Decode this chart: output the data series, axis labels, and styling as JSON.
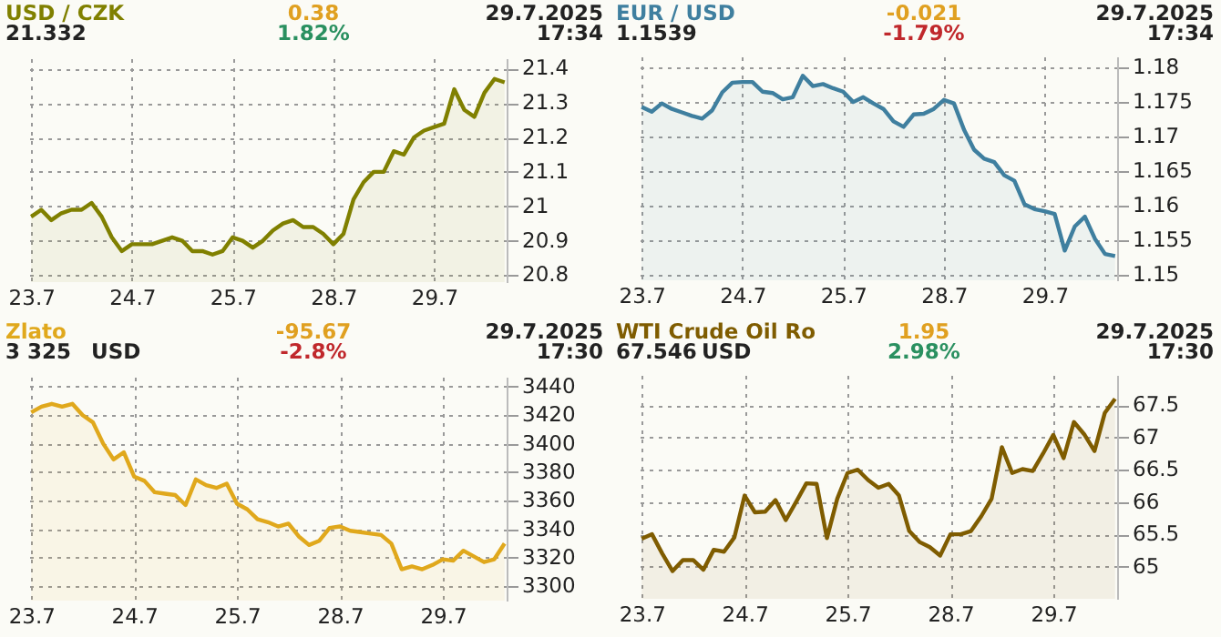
{
  "chart_data": [
    {
      "type": "area",
      "title": "USD / CZK",
      "annotations": [
        "21.332",
        "0.38",
        "1.82%",
        "29.7.2025",
        "17:34"
      ],
      "categories": [
        "23.7",
        null,
        null,
        null,
        null,
        null,
        null,
        null,
        null,
        null,
        "24.7",
        null,
        null,
        null,
        null,
        null,
        null,
        null,
        null,
        null,
        "25.7",
        null,
        null,
        null,
        null,
        null,
        null,
        null,
        null,
        null,
        "28.7",
        null,
        null,
        null,
        null,
        null,
        null,
        null,
        null,
        null,
        "29.7",
        null,
        null,
        null,
        null,
        null,
        null,
        null
      ],
      "series": [
        {
          "color": "#808000",
          "values": [
            20.97,
            20.99,
            20.96,
            20.98,
            20.99,
            20.99,
            21.01,
            20.97,
            20.91,
            20.87,
            20.89,
            20.89,
            20.89,
            20.9,
            20.91,
            20.9,
            20.87,
            20.87,
            20.86,
            20.87,
            20.91,
            20.9,
            20.88,
            20.9,
            20.93,
            20.95,
            20.96,
            20.94,
            20.94,
            20.92,
            20.89,
            20.92,
            21.02,
            21.07,
            21.1,
            21.1,
            21.16,
            21.15,
            21.2,
            21.22,
            21.23,
            21.24,
            21.34,
            21.28,
            21.26,
            21.33,
            21.37,
            21.36
          ]
        }
      ],
      "ylim": [
        20.78,
        21.43
      ],
      "yticks": [
        20.8,
        20.9,
        21,
        21.1,
        21.2,
        21.3,
        21.4
      ],
      "grid": true
    },
    {
      "type": "area",
      "title": "EUR / USD",
      "annotations": [
        "1.1539",
        "-0.021",
        "-1.79%",
        "29.7.2025",
        "17:34"
      ],
      "categories": [
        "23.7",
        null,
        null,
        null,
        null,
        null,
        null,
        null,
        null,
        null,
        "24.7",
        null,
        null,
        null,
        null,
        null,
        null,
        null,
        null,
        null,
        "25.7",
        null,
        null,
        null,
        null,
        null,
        null,
        null,
        null,
        null,
        "28.7",
        null,
        null,
        null,
        null,
        null,
        null,
        null,
        null,
        null,
        "29.7",
        null,
        null,
        null,
        null,
        null,
        null,
        null
      ],
      "series": [
        {
          "color": "#3f7f9f",
          "values": [
            1.1743,
            1.1736,
            1.1748,
            1.174,
            1.1735,
            1.173,
            1.1726,
            1.1738,
            1.1764,
            1.1778,
            1.1779,
            1.1779,
            1.1765,
            1.1763,
            1.1754,
            1.1757,
            1.1788,
            1.1773,
            1.1776,
            1.177,
            1.1765,
            1.175,
            1.1757,
            1.1748,
            1.174,
            1.1722,
            1.1714,
            1.1732,
            1.1733,
            1.174,
            1.1753,
            1.1748,
            1.171,
            1.1681,
            1.1668,
            1.1663,
            1.1644,
            1.1636,
            1.1602,
            1.1595,
            1.1592,
            1.1588,
            1.1535,
            1.157,
            1.1584,
            1.1552,
            1.153,
            1.1527
          ]
        }
      ],
      "ylim": [
        1.1492,
        1.1816
      ],
      "yticks": [
        1.15,
        1.155,
        1.16,
        1.165,
        1.17,
        1.175,
        1.18
      ],
      "grid": true
    },
    {
      "type": "area",
      "title": "Zlato",
      "annotations": [
        "3 325",
        "-95.67",
        "-2.8%",
        "29.7.2025",
        "17:30",
        "USD"
      ],
      "categories": [
        "23.7",
        null,
        null,
        null,
        null,
        null,
        null,
        null,
        null,
        null,
        "24.7",
        null,
        null,
        null,
        null,
        null,
        null,
        null,
        null,
        null,
        "25.7",
        null,
        null,
        null,
        null,
        null,
        null,
        null,
        null,
        null,
        "28.7",
        null,
        null,
        null,
        null,
        null,
        null,
        null,
        null,
        null,
        "29.7",
        null,
        null,
        null,
        null,
        null,
        null
      ],
      "series": [
        {
          "color": "#e0a81c",
          "values": [
            3422,
            3426,
            3428,
            3426,
            3428,
            3420,
            3415,
            3400,
            3389,
            3394,
            3377,
            3374,
            3366,
            3365,
            3364,
            3357,
            3375,
            3371,
            3369,
            3372,
            3358,
            3354,
            3347,
            3345,
            3342,
            3344,
            3335,
            3329,
            3332,
            3341,
            3342,
            3339,
            3338,
            3337,
            3336,
            3330,
            3312,
            3314,
            3312,
            3315,
            3319,
            3318,
            3325,
            3321,
            3317,
            3319,
            3330
          ]
        }
      ],
      "ylim": [
        3290,
        3447
      ],
      "yticks": [
        3300,
        3320,
        3340,
        3360,
        3380,
        3400,
        3420,
        3440
      ],
      "grid": true
    },
    {
      "type": "area",
      "title": "WTI Crude Oil Ro",
      "annotations": [
        "67.546",
        "1.95",
        "2.98%",
        "29.7.2025",
        "17:30",
        "USD"
      ],
      "categories": [
        "23.7",
        null,
        null,
        null,
        null,
        null,
        null,
        null,
        null,
        null,
        "24.7",
        null,
        null,
        null,
        null,
        null,
        null,
        null,
        null,
        null,
        "25.7",
        null,
        null,
        null,
        null,
        null,
        null,
        null,
        null,
        null,
        "28.7",
        null,
        null,
        null,
        null,
        null,
        null,
        null,
        null,
        null,
        "29.7",
        null,
        null,
        null,
        null,
        null,
        null
      ],
      "series": [
        {
          "color": "#7f5c00",
          "values": [
            65.43,
            65.5,
            65.2,
            64.93,
            65.1,
            65.1,
            64.95,
            65.26,
            65.23,
            65.45,
            66.1,
            65.84,
            65.85,
            66.03,
            65.72,
            66,
            66.29,
            66.28,
            65.44,
            66.05,
            66.45,
            66.5,
            66.34,
            66.22,
            66.28,
            66.1,
            65.55,
            65.38,
            65.3,
            65.17,
            65.5,
            65.5,
            65.55,
            65.78,
            66.05,
            66.85,
            66.45,
            66.51,
            66.48,
            66.75,
            67.04,
            66.68,
            67.24,
            67.05,
            66.79,
            67.38,
            67.6
          ]
        }
      ],
      "ylim": [
        64.5,
        67.97
      ],
      "yticks": [
        65,
        65.5,
        66,
        66.5,
        67,
        67.5
      ],
      "grid": true
    }
  ]
}
